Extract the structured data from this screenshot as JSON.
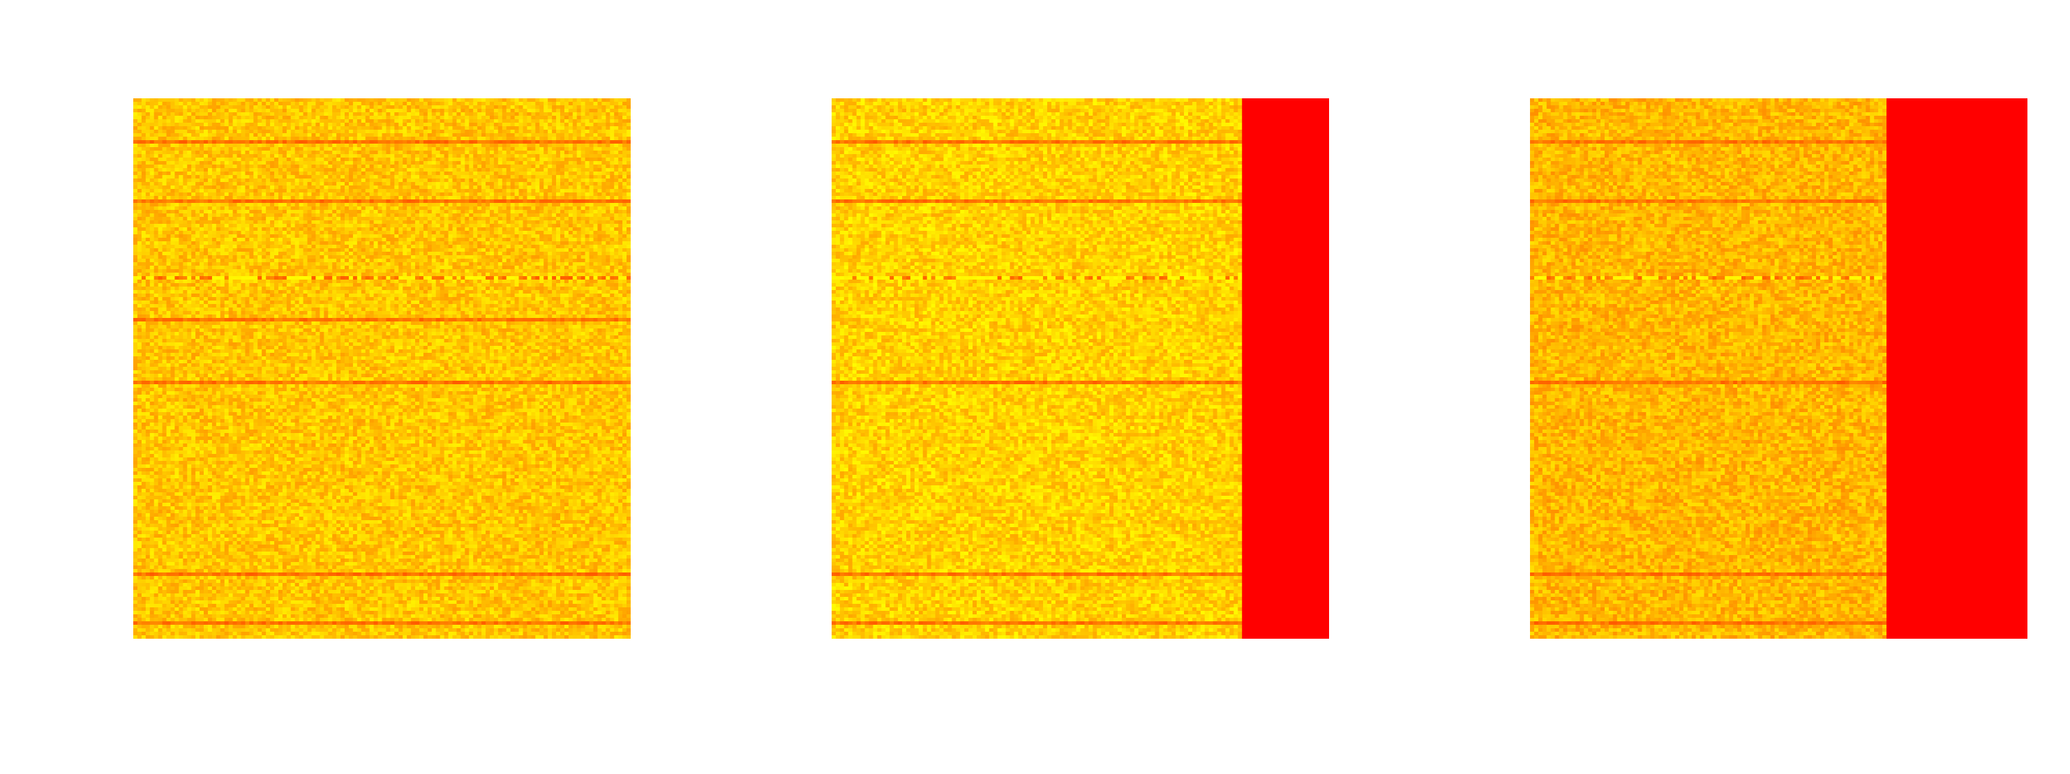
{
  "chart_data": [
    {
      "type": "heatmap",
      "title": "",
      "xlabel": "",
      "ylabel": "",
      "axes": "off",
      "colormap": "autumn",
      "colors": {
        "high": "#ffff00",
        "mid": "#ffc000",
        "low": "#ff0000"
      },
      "noise_level": 0.78,
      "masked_fraction": 0.0,
      "streak_rows": [
        0.075,
        0.185,
        0.33,
        0.405,
        0.52,
        0.88,
        0.97
      ],
      "bright_rows": [
        0.33
      ]
    },
    {
      "type": "heatmap",
      "title": "",
      "xlabel": "",
      "ylabel": "",
      "axes": "off",
      "colormap": "autumn",
      "colors": {
        "high": "#ffff00",
        "mid": "#ffc000",
        "low": "#ff0000"
      },
      "noise_level": 0.82,
      "masked_fraction": 0.173,
      "masked_value": 0,
      "streak_rows": [
        0.075,
        0.185,
        0.33,
        0.52,
        0.88,
        0.97
      ],
      "bright_rows": [
        0.33
      ]
    },
    {
      "type": "heatmap",
      "title": "",
      "xlabel": "",
      "ylabel": "",
      "axes": "off",
      "colormap": "autumn",
      "colors": {
        "high": "#ffff00",
        "mid": "#ffc000",
        "low": "#ff0000"
      },
      "noise_level": 0.72,
      "masked_fraction": 0.28,
      "masked_value": 0,
      "streak_rows": [
        0.075,
        0.185,
        0.33,
        0.52,
        0.88,
        0.97
      ],
      "bright_rows": [
        0.33
      ]
    }
  ]
}
